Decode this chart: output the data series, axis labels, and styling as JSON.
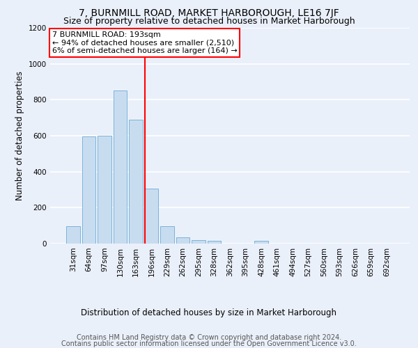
{
  "title": "7, BURNMILL ROAD, MARKET HARBOROUGH, LE16 7JF",
  "subtitle": "Size of property relative to detached houses in Market Harborough",
  "xlabel": "Distribution of detached houses by size in Market Harborough",
  "ylabel": "Number of detached properties",
  "footer_line1": "Contains HM Land Registry data © Crown copyright and database right 2024.",
  "footer_line2": "Contains public sector information licensed under the Open Government Licence v3.0.",
  "categories": [
    "31sqm",
    "64sqm",
    "97sqm",
    "130sqm",
    "163sqm",
    "196sqm",
    "229sqm",
    "262sqm",
    "295sqm",
    "328sqm",
    "362sqm",
    "395sqm",
    "428sqm",
    "461sqm",
    "494sqm",
    "527sqm",
    "560sqm",
    "593sqm",
    "626sqm",
    "659sqm",
    "692sqm"
  ],
  "values": [
    95,
    595,
    600,
    850,
    690,
    305,
    95,
    35,
    20,
    15,
    0,
    0,
    15,
    0,
    0,
    0,
    0,
    0,
    0,
    0,
    0
  ],
  "bar_color": "#c8dcf0",
  "bar_edge_color": "#7ab4d8",
  "annotation_text_line1": "7 BURNMILL ROAD: 193sqm",
  "annotation_text_line2": "← 94% of detached houses are smaller (2,510)",
  "annotation_text_line3": "6% of semi-detached houses are larger (164) →",
  "annotation_box_color": "white",
  "annotation_border_color": "red",
  "vline_color": "red",
  "ylim": [
    0,
    1200
  ],
  "yticks": [
    0,
    200,
    400,
    600,
    800,
    1000,
    1200
  ],
  "bg_color": "#eaf0fa",
  "grid_color": "white",
  "title_fontsize": 10,
  "subtitle_fontsize": 9,
  "axis_label_fontsize": 8.5,
  "tick_fontsize": 7.5,
  "annotation_fontsize": 8,
  "footer_fontsize": 7
}
